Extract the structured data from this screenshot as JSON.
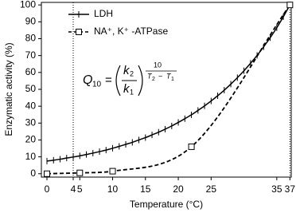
{
  "chart_data": {
    "type": "line",
    "x_label": "Temperature (°C)",
    "y_label": "Enzymatic activity (%)",
    "xlim": [
      -0.85,
      37.2
    ],
    "ylim": [
      -2,
      101.5
    ],
    "xticks": [
      0,
      4,
      5,
      10,
      15,
      20,
      25,
      35,
      37
    ],
    "yticks": [
      0,
      10,
      20,
      30,
      40,
      50,
      60,
      70,
      80,
      90,
      100
    ],
    "vlines": [
      4,
      37
    ],
    "legend": "upper-left",
    "series": [
      {
        "name": "LDH",
        "color": "#000000",
        "style": "solid",
        "marker": "tick",
        "x": [
          0,
          1,
          2,
          3,
          4,
          5,
          6,
          7,
          8,
          9,
          10,
          11,
          12,
          13,
          14,
          15,
          16,
          17,
          18,
          19,
          20,
          21,
          22,
          23,
          24,
          25,
          26,
          27,
          28,
          29,
          30,
          31,
          32,
          33,
          34,
          35,
          36,
          37
        ],
        "values": [
          7.5,
          8.0,
          8.6,
          9.3,
          9.9,
          10.6,
          11.4,
          12.2,
          13.1,
          14.0,
          15.1,
          16.2,
          17.4,
          18.6,
          20.0,
          21.4,
          23.0,
          24.6,
          26.4,
          28.3,
          30.4,
          32.6,
          34.9,
          37.5,
          40.2,
          43.1,
          46.2,
          49.5,
          53.1,
          56.9,
          61.0,
          65.4,
          70.1,
          75.2,
          80.6,
          86.5,
          93.0,
          100
        ]
      },
      {
        "name": "NA⁺, K⁺ -ATPase",
        "color": "#000000",
        "style": "dashed",
        "marker": "square",
        "x": [
          0,
          5,
          10,
          22,
          37
        ],
        "values": [
          0,
          0.5,
          1.5,
          16,
          100
        ]
      }
    ],
    "formula": {
      "lhs": "Q",
      "lhs_sub": "10",
      "eq": "=",
      "num": "k",
      "num_sub": "2",
      "den": "k",
      "den_sub": "1",
      "exp_num": "10",
      "exp_den_a": "T",
      "exp_den_a_sub": "2",
      "exp_den_op": "−",
      "exp_den_b": "T",
      "exp_den_b_sub": "1"
    }
  }
}
